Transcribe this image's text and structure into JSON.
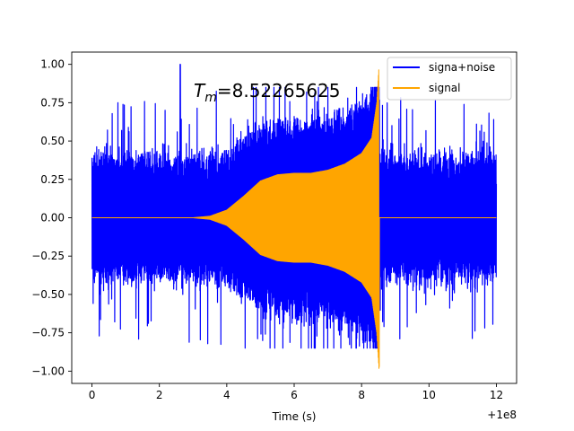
{
  "chart_data": {
    "type": "line",
    "title": "",
    "xlabel": "Time (s)",
    "ylabel": "",
    "x_offset_label": "+1e8",
    "xlim": [
      -0.6,
      12.6
    ],
    "ylim": [
      -1.08,
      1.08
    ],
    "x_ticks": [
      0,
      2,
      4,
      6,
      8,
      10,
      12
    ],
    "x_tick_labels": [
      "0",
      "2",
      "4",
      "6",
      "8",
      "10",
      "12"
    ],
    "y_ticks": [
      -1.0,
      -0.75,
      -0.5,
      -0.25,
      0.0,
      0.25,
      0.5,
      0.75,
      1.0
    ],
    "y_tick_labels": [
      "−1.00",
      "−0.75",
      "−0.50",
      "−0.25",
      "0.00",
      "0.25",
      "0.50",
      "0.75",
      "1.00"
    ],
    "annotation": {
      "symbol": "T",
      "subscript": "m",
      "value_text": "=8.52265625",
      "value": 8.52265625
    },
    "series": [
      {
        "name": "signa+noise",
        "color": "#0000ff",
        "x_range": [
          0,
          12
        ],
        "noise_amplitude_typical": 0.45,
        "noise_spike_max": 0.85,
        "spike_x": 2.62,
        "spike_y": 1.0
      },
      {
        "name": "signal",
        "color": "#ffa500",
        "x_range": [
          0,
          12
        ],
        "envelope": [
          [
            0,
            0.0
          ],
          [
            3.0,
            0.0
          ],
          [
            3.5,
            0.01
          ],
          [
            4.0,
            0.05
          ],
          [
            4.5,
            0.14
          ],
          [
            5.0,
            0.24
          ],
          [
            5.5,
            0.28
          ],
          [
            6.0,
            0.29
          ],
          [
            6.5,
            0.29
          ],
          [
            7.0,
            0.31
          ],
          [
            7.5,
            0.35
          ],
          [
            8.0,
            0.42
          ],
          [
            8.3,
            0.52
          ],
          [
            8.45,
            0.75
          ],
          [
            8.52,
            1.0
          ]
        ],
        "merger_time": 8.52265625,
        "merger_min": -0.97
      }
    ],
    "legend": {
      "position": "top-right",
      "entries": [
        "signa+noise",
        "signal"
      ]
    }
  }
}
